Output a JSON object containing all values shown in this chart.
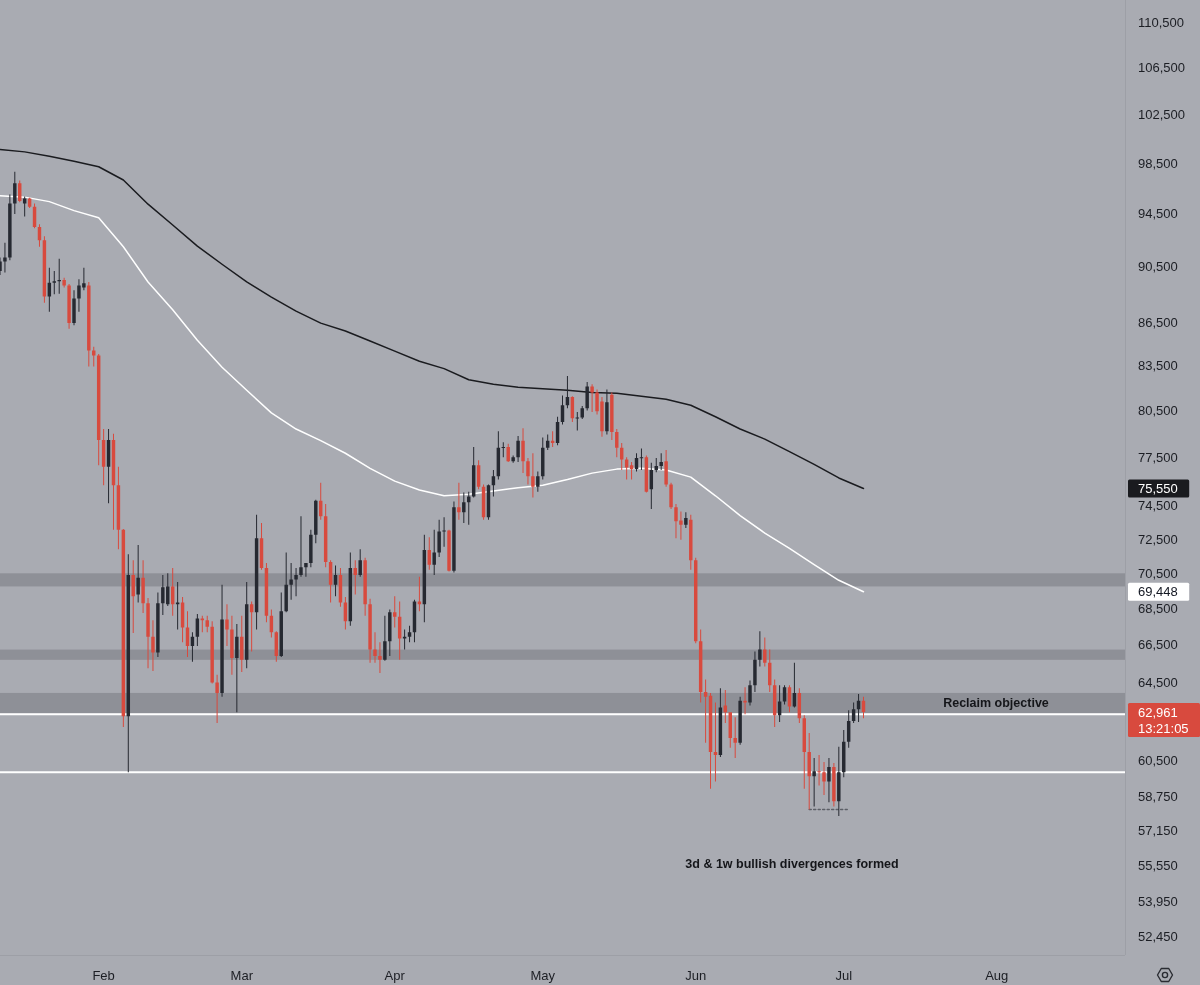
{
  "chart_data": {
    "type": "candlestick",
    "x": [
      "--01-11",
      "--01-12",
      "--01-13",
      "--01-14",
      "--01-15",
      "--01-16",
      "--01-17",
      "--01-18",
      "--01-19",
      "--01-20",
      "--01-21",
      "--01-22",
      "--01-23",
      "--01-24",
      "--01-25",
      "--01-26",
      "--01-27",
      "--01-28",
      "--01-29",
      "--01-30",
      "--01-31",
      "--02-01",
      "--02-02",
      "--02-03",
      "--02-04",
      "--02-05",
      "--02-06",
      "--02-07",
      "--02-08",
      "--02-09",
      "--02-10",
      "--02-11",
      "--02-12",
      "--02-13",
      "--02-14",
      "--02-15",
      "--02-16",
      "--02-17",
      "--02-18",
      "--02-19",
      "--02-20",
      "--02-21",
      "--02-22",
      "--02-23",
      "--02-24",
      "--02-25",
      "--02-26",
      "--02-27",
      "--02-28",
      "--03-01",
      "--03-02",
      "--03-03",
      "--03-04",
      "--03-05",
      "--03-06",
      "--03-07",
      "--03-08",
      "--03-09",
      "--03-10",
      "--03-11",
      "--03-12",
      "--03-13",
      "--03-14",
      "--03-15",
      "--03-16",
      "--03-17",
      "--03-18",
      "--03-19",
      "--03-20",
      "--03-21",
      "--03-22",
      "--03-23",
      "--03-24",
      "--03-25",
      "--03-26",
      "--03-27",
      "--03-28",
      "--03-29",
      "--03-30",
      "--03-31",
      "--04-01",
      "--04-02",
      "--04-03",
      "--04-04",
      "--04-05",
      "--04-06",
      "--04-07",
      "--04-08",
      "--04-09",
      "--04-10",
      "--04-11",
      "--04-12",
      "--04-13",
      "--04-14",
      "--04-15",
      "--04-16",
      "--04-17",
      "--04-18",
      "--04-19",
      "--04-20",
      "--04-21",
      "--04-22",
      "--04-23",
      "--04-24",
      "--04-25",
      "--04-26",
      "--04-27",
      "--04-28",
      "--04-29",
      "--04-30",
      "--05-01",
      "--05-02",
      "--05-03",
      "--05-04",
      "--05-05",
      "--05-06",
      "--05-07",
      "--05-08",
      "--05-09",
      "--05-10",
      "--05-11",
      "--05-12",
      "--05-13",
      "--05-14",
      "--05-15",
      "--05-16",
      "--05-17",
      "--05-18",
      "--05-19",
      "--05-20",
      "--05-21",
      "--05-22",
      "--05-23",
      "--05-24",
      "--05-25",
      "--05-26",
      "--05-27",
      "--05-28",
      "--05-29",
      "--05-30",
      "--05-31",
      "--06-01",
      "--06-02",
      "--06-03",
      "--06-04",
      "--06-05",
      "--06-06",
      "--06-07",
      "--06-08",
      "--06-09",
      "--06-10",
      "--06-11",
      "--06-12",
      "--06-13",
      "--06-14",
      "--06-15",
      "--06-16",
      "--06-17",
      "--06-18",
      "--06-19",
      "--06-20",
      "--06-21",
      "--06-22",
      "--06-23",
      "--06-24",
      "--06-25",
      "--06-26",
      "--06-27",
      "--06-28",
      "--06-29",
      "--06-30",
      "--07-01",
      "--07-02",
      "--07-03",
      "--07-04",
      "--07-05"
    ],
    "ohlc": [
      [
        90200,
        91200,
        89900,
        90900
      ],
      [
        90900,
        92300,
        90100,
        91200
      ],
      [
        91200,
        96000,
        91000,
        95300
      ],
      [
        95300,
        97800,
        94500,
        96900
      ],
      [
        96900,
        97100,
        95400,
        95500
      ],
      [
        95300,
        95850,
        94300,
        95700
      ],
      [
        95700,
        95750,
        94950,
        95050
      ],
      [
        95050,
        95300,
        93400,
        93500
      ],
      [
        93500,
        93700,
        92000,
        92500
      ],
      [
        92500,
        92800,
        87900,
        88350
      ],
      [
        88350,
        90450,
        87250,
        89350
      ],
      [
        89350,
        90200,
        88500,
        89450
      ],
      [
        89450,
        91100,
        88550,
        89550
      ],
      [
        89550,
        89700,
        89000,
        89150
      ],
      [
        89150,
        89250,
        86050,
        86450
      ],
      [
        86450,
        88800,
        86300,
        88200
      ],
      [
        88200,
        89600,
        87250,
        89150
      ],
      [
        89000,
        90450,
        88800,
        89300
      ],
      [
        89150,
        89400,
        83450,
        84550
      ],
      [
        84550,
        84800,
        83450,
        84200
      ],
      [
        84200,
        84300,
        77000,
        78600
      ],
      [
        78600,
        79300,
        75750,
        76900
      ],
      [
        76900,
        79300,
        74650,
        78600
      ],
      [
        78600,
        79000,
        73050,
        75750
      ],
      [
        75750,
        76900,
        71900,
        73050
      ],
      [
        73050,
        73100,
        62200,
        62750
      ],
      [
        62750,
        71600,
        59950,
        70400
      ],
      [
        70400,
        71250,
        67150,
        69200
      ],
      [
        69300,
        72150,
        68850,
        70250
      ],
      [
        70250,
        71250,
        68250,
        68800
      ],
      [
        68800,
        69100,
        65250,
        66950
      ],
      [
        66950,
        67850,
        65100,
        66100
      ],
      [
        66100,
        69400,
        65850,
        68800
      ],
      [
        68800,
        70400,
        68150,
        69700
      ],
      [
        68750,
        70500,
        68650,
        69750
      ],
      [
        69750,
        70800,
        68100,
        68750
      ],
      [
        68750,
        70000,
        67350,
        68850
      ],
      [
        68850,
        69150,
        66650,
        67450
      ],
      [
        67450,
        68350,
        65850,
        66450
      ],
      [
        66450,
        67200,
        65600,
        66950
      ],
      [
        66950,
        68200,
        66450,
        67950
      ],
      [
        67950,
        68100,
        67200,
        67850
      ],
      [
        67850,
        68100,
        67200,
        67500
      ],
      [
        67500,
        67800,
        64450,
        64500
      ],
      [
        64500,
        64900,
        62400,
        63950
      ],
      [
        63950,
        69850,
        63750,
        67900
      ],
      [
        67900,
        68750,
        66450,
        67350
      ],
      [
        67350,
        68100,
        64900,
        65800
      ],
      [
        65800,
        67650,
        62950,
        66950
      ],
      [
        66950,
        68100,
        65050,
        65700
      ],
      [
        65700,
        70000,
        65250,
        68750
      ],
      [
        68750,
        68900,
        66150,
        68300
      ],
      [
        68300,
        73950,
        67350,
        72550
      ],
      [
        72550,
        73450,
        70700,
        70800
      ],
      [
        70800,
        71100,
        67750,
        68100
      ],
      [
        68100,
        68450,
        66900,
        67200
      ],
      [
        67200,
        67250,
        65600,
        65900
      ],
      [
        65900,
        69400,
        65850,
        68350
      ],
      [
        68350,
        71700,
        68300,
        69850
      ],
      [
        69850,
        71100,
        69000,
        70150
      ],
      [
        70150,
        70800,
        69200,
        70400
      ],
      [
        70400,
        73850,
        70300,
        70850
      ],
      [
        70850,
        71100,
        70300,
        71100
      ],
      [
        71100,
        73050,
        70850,
        72750
      ],
      [
        72750,
        74850,
        72250,
        74800
      ],
      [
        74800,
        75900,
        73650,
        73850
      ],
      [
        73850,
        74600,
        70850,
        71150
      ],
      [
        71150,
        71250,
        68850,
        69850
      ],
      [
        69850,
        70950,
        69200,
        70400
      ],
      [
        70400,
        70800,
        68600,
        68850
      ],
      [
        68850,
        69150,
        67350,
        67800
      ],
      [
        67800,
        71700,
        67550,
        70800
      ],
      [
        70800,
        71250,
        69300,
        70400
      ],
      [
        70400,
        71900,
        70300,
        71250
      ],
      [
        71250,
        71400,
        68100,
        68750
      ],
      [
        68750,
        69050,
        65550,
        66250
      ],
      [
        66250,
        67200,
        65550,
        65900
      ],
      [
        65900,
        66650,
        65000,
        65700
      ],
      [
        65700,
        68100,
        65650,
        66700
      ],
      [
        66700,
        68450,
        65900,
        68300
      ],
      [
        68300,
        69200,
        67450,
        68050
      ],
      [
        68050,
        68900,
        65700,
        66850
      ],
      [
        66850,
        67350,
        66250,
        66950
      ],
      [
        66950,
        67550,
        66650,
        67200
      ],
      [
        67200,
        69000,
        66650,
        68900
      ],
      [
        68900,
        70300,
        68350,
        68750
      ],
      [
        68750,
        72750,
        67750,
        71850
      ],
      [
        71850,
        72600,
        70700,
        71000
      ],
      [
        71000,
        73050,
        70400,
        71700
      ],
      [
        71700,
        73650,
        71450,
        72950
      ],
      [
        72950,
        73800,
        72050,
        73000
      ],
      [
        73000,
        73050,
        70600,
        70650
      ],
      [
        70650,
        74750,
        70550,
        74400
      ],
      [
        74400,
        75900,
        73650,
        74100
      ],
      [
        74100,
        75300,
        73450,
        74700
      ],
      [
        74700,
        75350,
        73350,
        75050
      ],
      [
        75050,
        78150,
        75000,
        77000
      ],
      [
        77000,
        77300,
        75500,
        75650
      ],
      [
        75650,
        75800,
        73650,
        73800
      ],
      [
        73800,
        75800,
        73650,
        75750
      ],
      [
        75750,
        76700,
        75050,
        76300
      ],
      [
        76300,
        79150,
        76100,
        78100
      ],
      [
        78100,
        78450,
        77500,
        78150
      ],
      [
        78150,
        78350,
        77200,
        77250
      ],
      [
        77250,
        77600,
        77150,
        77500
      ],
      [
        77500,
        78850,
        77200,
        78550
      ],
      [
        78550,
        79350,
        76500,
        77250
      ],
      [
        77250,
        77450,
        75800,
        76300
      ],
      [
        76300,
        77750,
        75000,
        75650
      ],
      [
        75650,
        76600,
        75350,
        76300
      ],
      [
        76300,
        78750,
        76100,
        78100
      ],
      [
        78100,
        78950,
        77950,
        78550
      ],
      [
        78550,
        79150,
        78150,
        78400
      ],
      [
        78400,
        80100,
        78250,
        79750
      ],
      [
        79750,
        81500,
        79600,
        80850
      ],
      [
        80850,
        82800,
        80650,
        81400
      ],
      [
        81400,
        81450,
        79750,
        80000
      ],
      [
        80000,
        80400,
        79200,
        80050
      ],
      [
        80050,
        80800,
        79950,
        80650
      ],
      [
        80650,
        82400,
        80500,
        82100
      ],
      [
        82100,
        82250,
        80400,
        81700
      ],
      [
        81700,
        81900,
        80250,
        80450
      ],
      [
        81100,
        81400,
        78800,
        79150
      ],
      [
        79150,
        81900,
        78950,
        81050
      ],
      [
        81550,
        81700,
        78600,
        79100
      ],
      [
        79100,
        79300,
        77500,
        78100
      ],
      [
        78100,
        78400,
        76700,
        77350
      ],
      [
        77350,
        77500,
        76100,
        76850
      ],
      [
        77000,
        77200,
        76100,
        76750
      ],
      [
        76750,
        77750,
        76600,
        77450
      ],
      [
        77450,
        78050,
        76700,
        77500
      ],
      [
        77500,
        77600,
        75300,
        75350
      ],
      [
        75500,
        77150,
        74300,
        76700
      ],
      [
        76700,
        77450,
        76550,
        76950
      ],
      [
        76950,
        77750,
        76700,
        77200
      ],
      [
        77250,
        77950,
        75650,
        75800
      ],
      [
        75800,
        75900,
        74300,
        74400
      ],
      [
        74400,
        74600,
        72550,
        73550
      ],
      [
        73600,
        74150,
        72450,
        73350
      ],
      [
        73350,
        74100,
        73150,
        73750
      ],
      [
        73650,
        73950,
        70700,
        71250
      ],
      [
        71250,
        71400,
        66600,
        66700
      ],
      [
        66700,
        67350,
        63450,
        64000
      ],
      [
        64000,
        64650,
        61400,
        63750
      ],
      [
        63800,
        63950,
        59150,
        60950
      ],
      [
        60950,
        63450,
        59500,
        60800
      ],
      [
        60800,
        64200,
        60700,
        63200
      ],
      [
        63300,
        64100,
        62400,
        62950
      ],
      [
        62950,
        62950,
        61150,
        61650
      ],
      [
        61650,
        62700,
        60650,
        61400
      ],
      [
        61400,
        63750,
        61300,
        63550
      ],
      [
        63550,
        64250,
        62850,
        63450
      ],
      [
        63450,
        64600,
        63300,
        64350
      ],
      [
        64350,
        66150,
        64000,
        65700
      ],
      [
        65700,
        67250,
        65350,
        66250
      ],
      [
        66250,
        66900,
        65350,
        65550
      ],
      [
        65550,
        66250,
        64000,
        64350
      ],
      [
        64350,
        64650,
        62200,
        62800
      ],
      [
        62800,
        64350,
        62450,
        63500
      ],
      [
        63500,
        64350,
        63350,
        64250
      ],
      [
        64250,
        64350,
        62950,
        63250
      ],
      [
        63250,
        65550,
        63200,
        63950
      ],
      [
        63950,
        64200,
        62400,
        62650
      ],
      [
        62650,
        62800,
        59150,
        60950
      ],
      [
        60950,
        61900,
        58150,
        59750
      ],
      [
        59750,
        60650,
        58300,
        60000
      ],
      [
        60000,
        60800,
        59300,
        59950
      ],
      [
        59950,
        60450,
        58850,
        59500
      ],
      [
        59500,
        60650,
        58500,
        60200
      ],
      [
        60200,
        60400,
        58300,
        58550
      ],
      [
        58550,
        61200,
        57850,
        59950
      ],
      [
        59950,
        62050,
        59700,
        61450
      ],
      [
        61450,
        63050,
        61150,
        62500
      ],
      [
        62500,
        63450,
        62400,
        63100
      ],
      [
        63100,
        63900,
        62450,
        63550
      ],
      [
        63550,
        63750,
        62650,
        62961
      ]
    ],
    "colors": [
      "#262931",
      "#262931",
      "#262931",
      "#262931",
      "#d84a3e",
      "#262931",
      "#d84a3e",
      "#d84a3e",
      "#d84a3e",
      "#d84a3e",
      "#262931",
      "#262931",
      "#262931",
      "#d84a3e",
      "#d84a3e",
      "#262931",
      "#262931",
      "#262931",
      "#d84a3e",
      "#d84a3e",
      "#d84a3e",
      "#d84a3e",
      "#262931",
      "#d84a3e",
      "#d84a3e",
      "#d84a3e",
      "#262931",
      "#d84a3e",
      "#262931",
      "#d84a3e",
      "#d84a3e",
      "#d84a3e",
      "#262931",
      "#262931",
      "#262931",
      "#d84a3e",
      "#262931",
      "#d84a3e",
      "#d84a3e",
      "#262931",
      "#262931",
      "#d84a3e",
      "#d84a3e",
      "#d84a3e",
      "#d84a3e",
      "#262931",
      "#d84a3e",
      "#d84a3e",
      "#262931",
      "#d84a3e",
      "#262931",
      "#d84a3e",
      "#262931",
      "#d84a3e",
      "#d84a3e",
      "#d84a3e",
      "#d84a3e",
      "#262931",
      "#262931",
      "#262931",
      "#262931",
      "#262931",
      "#262931",
      "#262931",
      "#262931",
      "#d84a3e",
      "#d84a3e",
      "#d84a3e",
      "#262931",
      "#d84a3e",
      "#d84a3e",
      "#262931",
      "#d84a3e",
      "#262931",
      "#d84a3e",
      "#d84a3e",
      "#d84a3e",
      "#d84a3e",
      "#262931",
      "#262931",
      "#d84a3e",
      "#d84a3e",
      "#262931",
      "#262931",
      "#262931",
      "#d84a3e",
      "#262931",
      "#d84a3e",
      "#262931",
      "#262931",
      "#262931",
      "#d84a3e",
      "#262931",
      "#d84a3e",
      "#262931",
      "#262931",
      "#262931",
      "#d84a3e",
      "#d84a3e",
      "#262931",
      "#262931",
      "#262931",
      "#262931",
      "#d84a3e",
      "#262931",
      "#262931",
      "#d84a3e",
      "#d84a3e",
      "#d84a3e",
      "#262931",
      "#262931",
      "#262931",
      "#d84a3e",
      "#262931",
      "#262931",
      "#262931",
      "#d84a3e",
      "#262931",
      "#262931",
      "#262931",
      "#d84a3e",
      "#d84a3e",
      "#d84a3e",
      "#262931",
      "#d84a3e",
      "#d84a3e",
      "#d84a3e",
      "#d84a3e",
      "#d84a3e",
      "#262931",
      "#262931",
      "#d84a3e",
      "#262931",
      "#262931",
      "#262931",
      "#d84a3e",
      "#d84a3e",
      "#d84a3e",
      "#d84a3e",
      "#262931",
      "#d84a3e",
      "#d84a3e",
      "#d84a3e",
      "#d84a3e",
      "#d84a3e",
      "#d84a3e",
      "#262931",
      "#d84a3e",
      "#d84a3e",
      "#d84a3e",
      "#262931",
      "#d84a3e",
      "#262931",
      "#262931",
      "#262931",
      "#d84a3e",
      "#d84a3e",
      "#d84a3e",
      "#262931",
      "#262931",
      "#d84a3e",
      "#262931",
      "#d84a3e",
      "#d84a3e",
      "#d84a3e",
      "#262931",
      "#d84a3e",
      "#d84a3e",
      "#262931",
      "#d84a3e",
      "#262931",
      "#262931",
      "#262931",
      "#262931",
      "#262931",
      "#d84a3e"
    ],
    "series": [
      {
        "type": "line",
        "color": "#1a1b1f",
        "x": [
          "--01-11",
          "--01-16",
          "--01-21",
          "--01-26",
          "--01-31",
          "--02-05",
          "--02-10",
          "--02-15",
          "--02-20",
          "--02-25",
          "--03-02",
          "--03-07",
          "--03-12",
          "--03-17",
          "--03-22",
          "--03-27",
          "--04-01",
          "--04-06",
          "--04-11",
          "--04-16",
          "--04-21",
          "--04-26",
          "--05-01",
          "--05-06",
          "--05-11",
          "--05-16",
          "--05-21",
          "--05-26",
          "--05-31",
          "--06-05",
          "--06-10",
          "--06-15",
          "--06-20",
          "--06-25",
          "--06-30",
          "--07-05"
        ],
        "values": [
          99600,
          99400,
          99050,
          98650,
          98200,
          97150,
          95250,
          93650,
          92050,
          90700,
          89400,
          88300,
          87300,
          86450,
          85900,
          85200,
          84500,
          83800,
          83300,
          82550,
          82250,
          82050,
          81950,
          81850,
          81700,
          81650,
          81450,
          81250,
          80850,
          80100,
          79300,
          78650,
          77850,
          77050,
          76200,
          75550
        ]
      },
      {
        "type": "line",
        "color": "#ffffff",
        "x": [
          "--01-11",
          "--01-16",
          "--01-21",
          "--01-26",
          "--01-31",
          "--02-05",
          "--02-10",
          "--02-15",
          "--02-20",
          "--02-25",
          "--03-02",
          "--03-07",
          "--03-12",
          "--03-17",
          "--03-22",
          "--03-27",
          "--04-01",
          "--04-06",
          "--04-11",
          "--04-16",
          "--04-21",
          "--04-26",
          "--05-01",
          "--05-06",
          "--05-11",
          "--05-16",
          "--05-21",
          "--05-26",
          "--05-31",
          "--06-05",
          "--06-10",
          "--06-15",
          "--06-20",
          "--06-25",
          "--06-30",
          "--07-05"
        ],
        "values": [
          95900,
          95800,
          95450,
          94750,
          94200,
          92000,
          89400,
          87400,
          85250,
          83400,
          81850,
          80350,
          79300,
          78550,
          77750,
          76800,
          76000,
          75450,
          75100,
          75200,
          75400,
          75600,
          75750,
          76100,
          76500,
          76750,
          76800,
          76700,
          76250,
          75100,
          73900,
          72850,
          71950,
          71000,
          70100,
          69448
        ]
      },
      {
        "type": "line",
        "color": "#5c5f67",
        "line_style": "dotted",
        "x": [
          "--06-24",
          "--07-02"
        ],
        "values": [
          58150,
          58150
        ]
      }
    ],
    "bands": [
      {
        "axis": "y",
        "from": 69750,
        "to": 70500,
        "color": "#8e9097"
      },
      {
        "axis": "y",
        "from": 65700,
        "to": 66250,
        "color": "#8e9097"
      },
      {
        "axis": "y",
        "from": 62900,
        "to": 63950,
        "color": "#8e9097"
      }
    ],
    "ref_lines": [
      {
        "axis": "y",
        "value": 62850,
        "color": "#ffffff"
      },
      {
        "axis": "y",
        "value": 59950,
        "color": "#ffffff"
      }
    ],
    "annotations": [
      "Reclaim objective",
      "3d & 1w bullish divergences formed",
      "13:21:05"
    ],
    "xlim": [
      "--01-11",
      "--08-27"
    ],
    "xticks": [
      {
        "value": "--02-01",
        "label": "Feb"
      },
      {
        "value": "--03-01",
        "label": "Mar"
      },
      {
        "value": "--04-01",
        "label": "Apr"
      },
      {
        "value": "--05-01",
        "label": "May"
      },
      {
        "value": "--06-01",
        "label": "Jun"
      },
      {
        "value": "--07-01",
        "label": "Jul"
      },
      {
        "value": "--08-01",
        "label": "Aug"
      }
    ],
    "ylim": [
      51650,
      112500
    ],
    "yticks": [
      {
        "value": 110500,
        "label": "110,500"
      },
      {
        "value": 106500,
        "label": "106,500"
      },
      {
        "value": 102500,
        "label": "102,500"
      },
      {
        "value": 98500,
        "label": "98,500"
      },
      {
        "value": 94500,
        "label": "94,500"
      },
      {
        "value": 90500,
        "label": "90,500"
      },
      {
        "value": 86500,
        "label": "86,500"
      },
      {
        "value": 83500,
        "label": "83,500"
      },
      {
        "value": 80500,
        "label": "80,500"
      },
      {
        "value": 77500,
        "label": "77,500"
      },
      {
        "value": 75550,
        "label": "75,550"
      },
      {
        "value": 74500,
        "label": "74,500"
      },
      {
        "value": 72500,
        "label": "72,500"
      },
      {
        "value": 70500,
        "label": "70,500"
      },
      {
        "value": 69448,
        "label": "69,448"
      },
      {
        "value": 68500,
        "label": "68,500"
      },
      {
        "value": 66500,
        "label": "66,500"
      },
      {
        "value": 64500,
        "label": "64,500"
      },
      {
        "value": 62961,
        "label": "62,961"
      },
      {
        "value": 60500,
        "label": "60,500"
      },
      {
        "value": 58750,
        "label": "58,750"
      },
      {
        "value": 57150,
        "label": "57,150"
      },
      {
        "value": 55550,
        "label": "55,550"
      },
      {
        "value": 53950,
        "label": "53,950"
      },
      {
        "value": 52450,
        "label": "52,450"
      }
    ],
    "log": true
  }
}
